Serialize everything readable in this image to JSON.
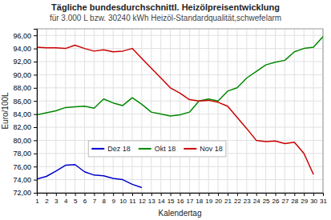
{
  "chart_data": {
    "type": "line",
    "title": "Tägliche bundesdurchschnittl. Heizölpreisentwicklung",
    "subtitle": "für 3.000 L bzw. 30240 kWh Heizöl-Standardqualität,schwefelarm",
    "x_label": "Kalendertag",
    "y_label": "Euro/100L",
    "x": [
      1,
      2,
      3,
      4,
      5,
      6,
      7,
      8,
      9,
      10,
      11,
      12,
      13,
      14,
      15,
      16,
      17,
      18,
      19,
      20,
      21,
      22,
      23,
      24,
      25,
      26,
      27,
      28,
      29,
      30,
      31
    ],
    "series": [
      {
        "name": "Dez 18",
        "color": "#0000cc",
        "values": [
          74.1,
          74.5,
          75.3,
          76.2,
          76.3,
          75.2,
          74.7,
          74.6,
          74.2,
          74.0,
          73.3,
          72.8,
          null,
          null,
          null,
          null,
          null,
          null,
          null,
          null,
          null,
          null,
          null,
          null,
          null,
          null,
          null,
          null,
          null,
          null,
          null
        ]
      },
      {
        "name": "Okt 18",
        "color": "#008800",
        "values": [
          83.9,
          84.2,
          84.5,
          85.0,
          85.1,
          85.2,
          84.9,
          86.3,
          85.7,
          85.3,
          86.5,
          85.5,
          84.3,
          84.0,
          83.7,
          83.9,
          84.3,
          86.0,
          86.3,
          86.0,
          87.5,
          88.0,
          89.5,
          90.5,
          91.5,
          91.9,
          92.2,
          93.5,
          94.0,
          94.2,
          95.8
        ]
      },
      {
        "name": "Nov 18",
        "color": "#cc0000",
        "values": [
          94.2,
          94.1,
          94.1,
          94.0,
          94.5,
          94.0,
          93.6,
          93.8,
          93.5,
          93.6,
          94.0,
          92.5,
          91.0,
          89.5,
          88.0,
          87.2,
          86.2,
          86.0,
          86.1,
          85.8,
          85.2,
          83.5,
          81.8,
          80.0,
          79.8,
          79.9,
          79.5,
          79.7,
          78.0,
          74.8,
          null
        ]
      }
    ],
    "xlim": [
      1,
      31
    ],
    "xticks": [
      1,
      2,
      3,
      4,
      5,
      6,
      7,
      8,
      9,
      10,
      11,
      12,
      13,
      14,
      15,
      16,
      17,
      18,
      19,
      20,
      21,
      22,
      23,
      24,
      25,
      26,
      27,
      28,
      29,
      30,
      31
    ],
    "ylim": [
      72.0,
      97.0
    ],
    "yticks": [
      {
        "value": 72.0,
        "label": "72,00"
      },
      {
        "value": 74.0,
        "label": "74,00"
      },
      {
        "value": 76.0,
        "label": "76,00"
      },
      {
        "value": 78.0,
        "label": "78,00"
      },
      {
        "value": 80.0,
        "label": "80,00"
      },
      {
        "value": 82.0,
        "label": "82,00"
      },
      {
        "value": 84.0,
        "label": "84,00"
      },
      {
        "value": 86.0,
        "label": "86,00"
      },
      {
        "value": 88.0,
        "label": "88,00"
      },
      {
        "value": 90.0,
        "label": "90,00"
      },
      {
        "value": 92.0,
        "label": "92,00"
      },
      {
        "value": 94.0,
        "label": "94,00"
      },
      {
        "value": 96.0,
        "label": "96,00"
      }
    ],
    "grid": true,
    "legend": "lower left"
  }
}
